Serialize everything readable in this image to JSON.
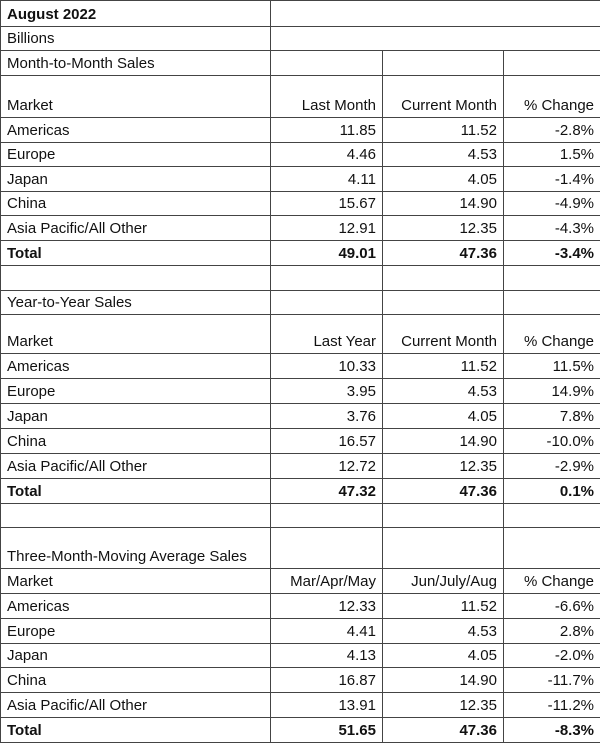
{
  "title": "August 2022",
  "units": "Billions",
  "sections": [
    {
      "heading": "Month-to-Month Sales",
      "columns": [
        "Market",
        "Last Month",
        "Current Month",
        "% Change"
      ],
      "rows": [
        [
          "Americas",
          "11.85",
          "11.52",
          "-2.8%"
        ],
        [
          "Europe",
          "4.46",
          "4.53",
          "1.5%"
        ],
        [
          "Japan",
          "4.11",
          "4.05",
          "-1.4%"
        ],
        [
          "China",
          "15.67",
          "14.90",
          "-4.9%"
        ],
        [
          "Asia Pacific/All Other",
          "12.91",
          "12.35",
          "-4.3%"
        ]
      ],
      "total": [
        "Total",
        "49.01",
        "47.36",
        "-3.4%"
      ]
    },
    {
      "heading": "Year-to-Year Sales",
      "columns": [
        "Market",
        "Last Year",
        "Current Month",
        "% Change"
      ],
      "rows": [
        [
          "Americas",
          "10.33",
          "11.52",
          "11.5%"
        ],
        [
          "Europe",
          "3.95",
          "4.53",
          "14.9%"
        ],
        [
          "Japan",
          "3.76",
          "4.05",
          "7.8%"
        ],
        [
          "China",
          "16.57",
          "14.90",
          "-10.0%"
        ],
        [
          "Asia Pacific/All Other",
          "12.72",
          "12.35",
          "-2.9%"
        ]
      ],
      "total": [
        "Total",
        "47.32",
        "47.36",
        "0.1%"
      ]
    },
    {
      "heading": "Three-Month-Moving Average Sales",
      "columns": [
        "Market",
        "Mar/Apr/May",
        "Jun/July/Aug",
        "% Change"
      ],
      "rows": [
        [
          "Americas",
          "12.33",
          "11.52",
          "-6.6%"
        ],
        [
          "Europe",
          "4.41",
          "4.53",
          "2.8%"
        ],
        [
          "Japan",
          "4.13",
          "4.05",
          "-2.0%"
        ],
        [
          "China",
          "16.87",
          "14.90",
          "-11.7%"
        ],
        [
          "Asia Pacific/All Other",
          "13.91",
          "12.35",
          "-11.2%"
        ]
      ],
      "total": [
        "Total",
        "51.65",
        "47.36",
        "-8.3%"
      ]
    }
  ]
}
